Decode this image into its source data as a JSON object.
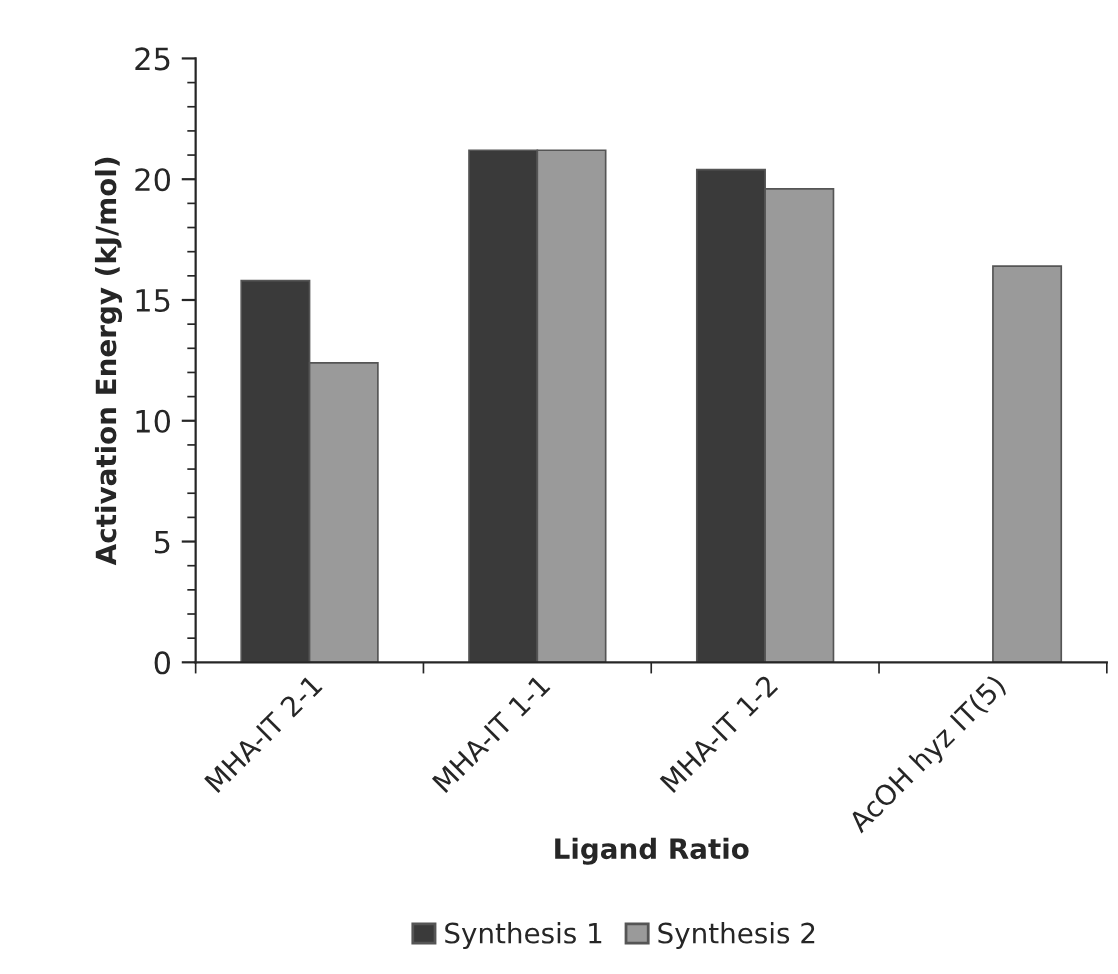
{
  "chart_data": {
    "type": "bar",
    "xlabel": "Ligand Ratio",
    "ylabel": "Activation Energy (kJ/mol)",
    "categories": [
      "MHA-IT 2-1",
      "MHA-IT 1-1",
      "MHA-IT 1-2",
      "AcOH hyz IT(5)"
    ],
    "series": [
      {
        "name": "Synthesis 1",
        "color": "#3a3a3a",
        "values": [
          15.8,
          21.2,
          20.4,
          null
        ]
      },
      {
        "name": "Synthesis 2",
        "color": "#9a9a9a",
        "values": [
          12.4,
          21.2,
          19.6,
          16.4
        ]
      }
    ],
    "ylim": [
      0,
      25
    ],
    "yticks": [
      0,
      5,
      10,
      15,
      20,
      25
    ],
    "grid": false,
    "legend": "bottom"
  }
}
